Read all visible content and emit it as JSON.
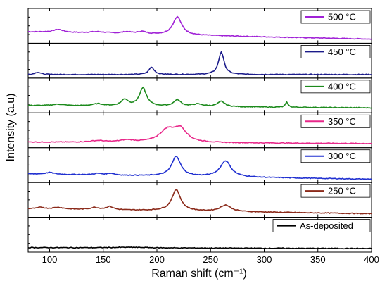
{
  "chart_data": {
    "type": "line",
    "xlabel": "Raman shift (cm⁻¹)",
    "ylabel": "Intensity (a.u)",
    "xlim": [
      80,
      400
    ],
    "x_ticks": [
      100,
      150,
      200,
      250,
      300,
      350,
      400
    ],
    "y_ticks_shown": false,
    "legend_placement": "top-right of each panel",
    "panels": [
      {
        "name": "500 °C",
        "color": "#a021d6",
        "ylim": [
          0,
          1
        ],
        "baseline": [
          0.32,
          0.07
        ],
        "peaks": [
          [
            108,
            0.1,
            6
          ],
          [
            145,
            0.05,
            10
          ],
          [
            172,
            0.06,
            6
          ],
          [
            186,
            0.08,
            5
          ],
          [
            219,
            0.62,
            5
          ]
        ]
      },
      {
        "name": "450 °C",
        "color": "#1b1b8a",
        "ylim": [
          0,
          1
        ],
        "baseline": [
          0.05,
          0.05
        ],
        "peaks": [
          [
            89,
            0.08,
            3
          ],
          [
            195,
            0.25,
            3
          ],
          [
            260,
            0.78,
            3
          ]
        ]
      },
      {
        "name": "400 °C",
        "color": "#1c8a1c",
        "ylim": [
          0,
          1
        ],
        "baseline": [
          0.18,
          0.1
        ],
        "peaks": [
          [
            108,
            0.05,
            6
          ],
          [
            145,
            0.07,
            6
          ],
          [
            170,
            0.22,
            4
          ],
          [
            187,
            0.62,
            4
          ],
          [
            219,
            0.22,
            4
          ],
          [
            238,
            0.08,
            6
          ],
          [
            260,
            0.18,
            4
          ],
          [
            321,
            0.17,
            1.5
          ]
        ]
      },
      {
        "name": "350 °C",
        "color": "#e8288a",
        "ylim": [
          0,
          1
        ],
        "baseline": [
          0.12,
          0.07
        ],
        "peaks": [
          [
            145,
            0.05,
            8
          ],
          [
            172,
            0.07,
            8
          ],
          [
            210,
            0.42,
            9
          ],
          [
            222,
            0.42,
            7
          ]
        ]
      },
      {
        "name": "300 °C",
        "color": "#1f2fd0",
        "ylim": [
          0,
          1
        ],
        "baseline": [
          0.22,
          0.04
        ],
        "peaks": [
          [
            100,
            0.06,
            5
          ],
          [
            145,
            0.05,
            5
          ],
          [
            157,
            0.06,
            4
          ],
          [
            218,
            0.68,
            5
          ],
          [
            264,
            0.55,
            6
          ]
        ]
      },
      {
        "name": "250 °C",
        "color": "#8b2a1a",
        "ylim": [
          0,
          1
        ],
        "baseline": [
          0.22,
          0.05
        ],
        "peaks": [
          [
            92,
            0.05,
            4
          ],
          [
            108,
            0.06,
            6
          ],
          [
            142,
            0.07,
            5
          ],
          [
            156,
            0.11,
            4
          ],
          [
            218,
            0.72,
            5
          ],
          [
            264,
            0.22,
            6
          ]
        ]
      },
      {
        "name": "As-deposited",
        "color": "#000000",
        "ylim": [
          0,
          1
        ],
        "baseline": [
          0.08,
          0.05
        ],
        "peaks": [
          [
            175,
            0.02,
            20
          ]
        ]
      }
    ]
  }
}
